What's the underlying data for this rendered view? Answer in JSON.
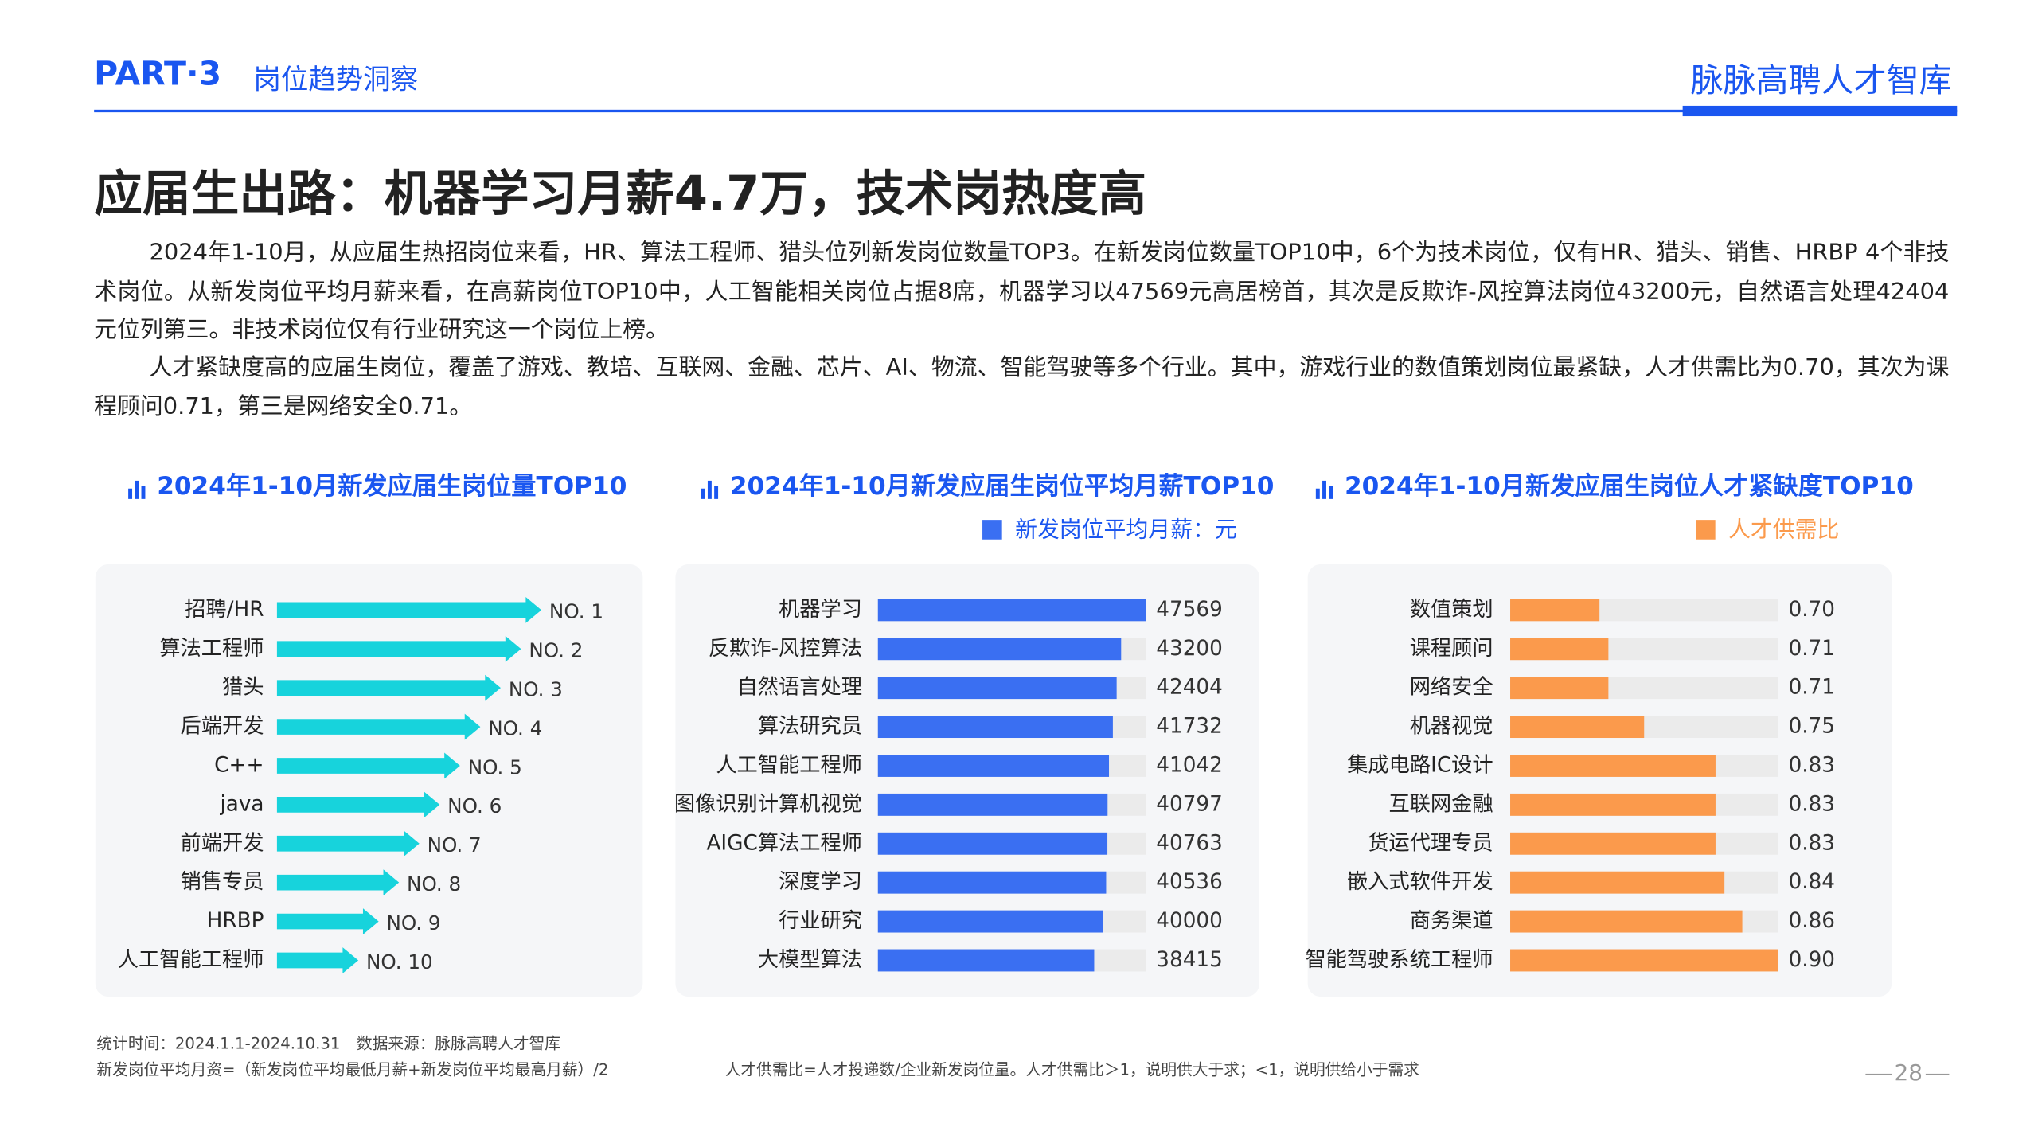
{
  "header": {
    "part": "PART·3",
    "section": "岗位趋势洞察",
    "brand": "脉脉高聘人才智库"
  },
  "title": "应届生出路：机器学习月薪4.7万，技术岗热度高",
  "paragraphs": [
    "2024年1-10月，从应届生热招岗位来看，HR、算法工程师、猎头位列新发岗位数量TOP3。在新发岗位数量TOP10中，6个为技术岗位，仅有HR、猎头、销售、HRBP 4个非技术岗位。从新发岗位平均月薪来看，在高薪岗位TOP10中，人工智能相关岗位占据8席，机器学习以47569元高居榜首，其次是反欺诈-风控算法岗位43200元，自然语言处理42404元位列第三。非技术岗位仅有行业研究这一个岗位上榜。",
    "人才紧缺度高的应届生岗位，覆盖了游戏、教培、互联网、金融、芯片、AI、物流、智能驾驶等多个行业。其中，游戏行业的数值策划岗位最紧缺，人才供需比为0.70，其次为课程顾问0.71，第三是网络安全0.71。"
  ],
  "chart_data": [
    {
      "type": "rank-arrow",
      "title": "2024年1-10月新发应届生岗位量TOP10",
      "categories": [
        "招聘/HR",
        "算法工程师",
        "猎头",
        "后端开发",
        "C++",
        "java",
        "前端开发",
        "销售专员",
        "HRBP",
        "人工智能工程师"
      ],
      "values": [
        1,
        2,
        3,
        4,
        5,
        6,
        7,
        8,
        9,
        10
      ],
      "value_labels": [
        "NO. 1",
        "NO. 2",
        "NO. 3",
        "NO. 4",
        "NO. 5",
        "NO. 6",
        "NO. 7",
        "NO. 8",
        "NO. 9",
        "NO. 10"
      ],
      "color": "#17d3dc",
      "xlim": [
        14,
        0
      ]
    },
    {
      "type": "bar",
      "title": "2024年1-10月新发应届生岗位平均月薪TOP10",
      "categories": [
        "机器学习",
        "反欺诈-风控算法",
        "自然语言处理",
        "算法研究员",
        "人工智能工程师",
        "图像识别计算机视觉",
        "AIGC算法工程师",
        "深度学习",
        "行业研究",
        "大模型算法"
      ],
      "series": [
        {
          "name": "新发岗位平均月薪：元",
          "color": "#3a6ff2",
          "values": [
            47569,
            43200,
            42404,
            41732,
            41042,
            40797,
            40763,
            40536,
            40000,
            38415
          ]
        }
      ],
      "xlim": [
        0,
        47569
      ]
    },
    {
      "type": "bar",
      "title": "2024年1-10月新发应届生岗位人才紧缺度TOP10",
      "categories": [
        "数值策划",
        "课程顾问",
        "网络安全",
        "机器视觉",
        "集成电路IC设计",
        "互联网金融",
        "货运代理专员",
        "嵌入式软件开发",
        "商务渠道",
        "智能驾驶系统工程师"
      ],
      "series": [
        {
          "name": "人才供需比",
          "color": "#fb9a4c",
          "values": [
            0.7,
            0.71,
            0.71,
            0.75,
            0.83,
            0.83,
            0.83,
            0.84,
            0.86,
            0.9
          ],
          "value_labels": [
            "0.70",
            "0.71",
            "0.71",
            "0.75",
            "0.83",
            "0.83",
            "0.83",
            "0.84",
            "0.86",
            "0.90"
          ]
        }
      ],
      "xlim": [
        0.6,
        0.9
      ]
    }
  ],
  "footnotes": {
    "period": "统计时间：2024.1.1-2024.10.31",
    "source": "数据来源：脉脉高聘人才智库",
    "salary_def": "新发岗位平均月资=（新发岗位平均最低月薪+新发岗位平均最高月薪）/2",
    "ratio_def": "人才供需比=人才投递数/企业新发岗位量。人才供需比＞1，说明供大于求；<1，说明供给小于需求"
  },
  "page_number": "28"
}
